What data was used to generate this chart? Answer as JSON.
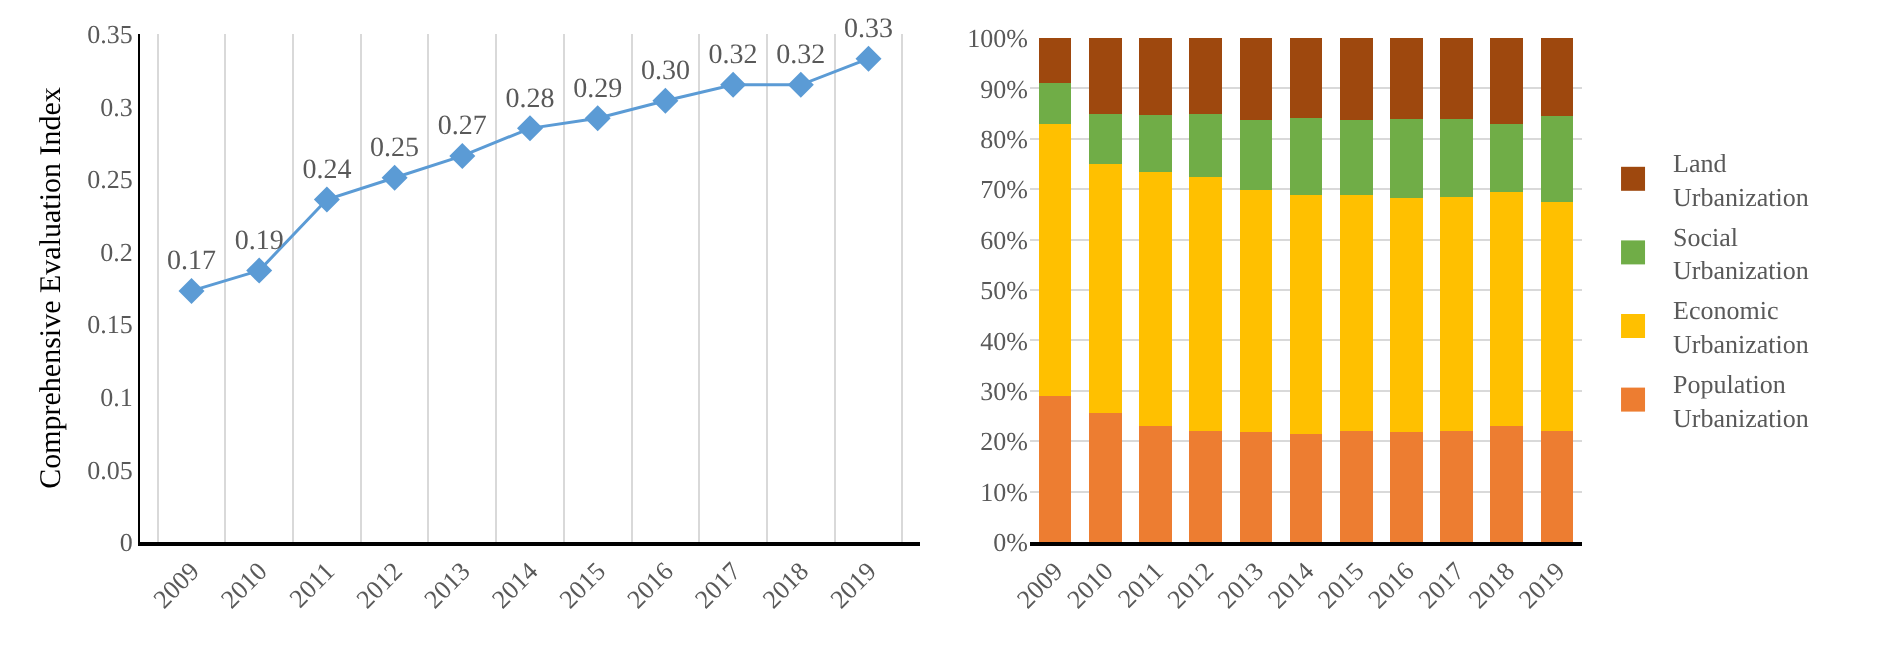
{
  "chart_data": [
    {
      "type": "line",
      "ylabel": "Comprehensive Evaluation Index",
      "categories": [
        "2009",
        "2010",
        "2011",
        "2012",
        "2013",
        "2014",
        "2015",
        "2016",
        "2017",
        "2018",
        "2019"
      ],
      "series": [
        {
          "color": "#5b9bd5",
          "values": [
            0.173,
            0.187,
            0.236,
            0.251,
            0.266,
            0.285,
            0.292,
            0.304,
            0.315,
            0.315,
            0.333
          ],
          "value_labels": [
            "0.17",
            "0.19",
            "0.24",
            "0.25",
            "0.27",
            "0.28",
            "0.29",
            "0.30",
            "0.32",
            "0.32",
            "0.33"
          ]
        }
      ],
      "ylim": [
        0,
        0.35
      ],
      "yticks": [
        0,
        0.05,
        0.1,
        0.15,
        0.2,
        0.25,
        0.3,
        0.35
      ],
      "grid": "x",
      "marker": "diamond",
      "line_style": "solid",
      "legend": false
    },
    {
      "type": "bar",
      "stacked": true,
      "categories": [
        "2009",
        "2010",
        "2011",
        "2012",
        "2013",
        "2014",
        "2015",
        "2016",
        "2017",
        "2018",
        "2019"
      ],
      "series": [
        {
          "name": "Population Urbanization",
          "color": "#ed7d31",
          "values": [
            29,
            25.5,
            23,
            22,
            21.8,
            21.4,
            22,
            21.8,
            22,
            23,
            22
          ]
        },
        {
          "name": "Economic Urbanization",
          "color": "#ffc000",
          "values": [
            54,
            49.5,
            50.5,
            50.5,
            48,
            47.4,
            46.8,
            46.4,
            46.5,
            46.5,
            45.5
          ]
        },
        {
          "name": "Social Urbanization",
          "color": "#70ad47",
          "values": [
            8,
            10,
            11.2,
            12.5,
            14,
            15.3,
            15,
            15.7,
            15.5,
            13.5,
            17
          ]
        },
        {
          "name": "Land Urbanization",
          "color": "#9e480e",
          "values": [
            9,
            15,
            15.3,
            15,
            16.2,
            15.9,
            16.2,
            16.1,
            16,
            17,
            15.5
          ]
        }
      ],
      "ylim": [
        0,
        100
      ],
      "yticks": [
        {
          "value": 0,
          "label": "0%"
        },
        {
          "value": 10,
          "label": "10%"
        },
        {
          "value": 20,
          "label": "20%"
        },
        {
          "value": 30,
          "label": "30%"
        },
        {
          "value": 40,
          "label": "40%"
        },
        {
          "value": 50,
          "label": "50%"
        },
        {
          "value": 60,
          "label": "60%"
        },
        {
          "value": 70,
          "label": "70%"
        },
        {
          "value": 80,
          "label": "80%"
        },
        {
          "value": 90,
          "label": "90%"
        },
        {
          "value": 100,
          "label": "100%"
        }
      ],
      "grid": "y",
      "legend": "right"
    }
  ]
}
